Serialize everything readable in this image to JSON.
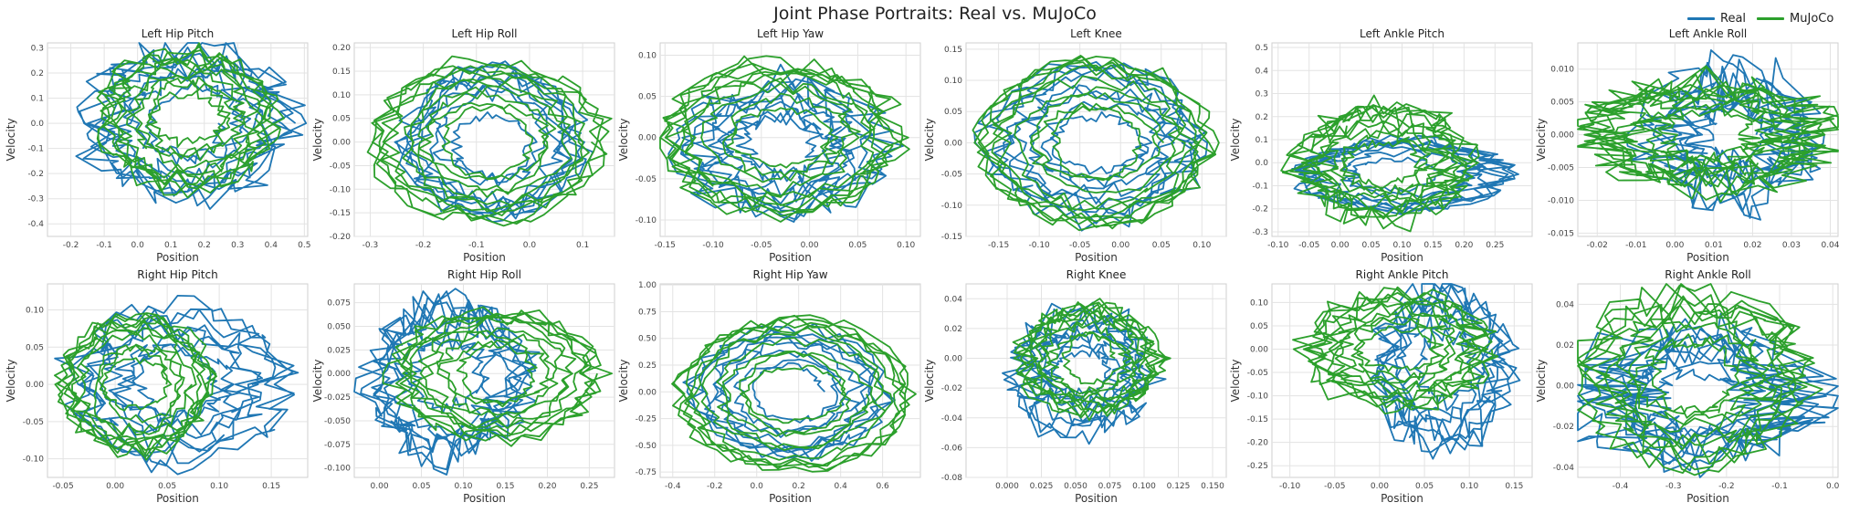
{
  "figure": {
    "title": "Joint Phase Portraits: Real vs. MuJoCo",
    "legend": [
      {
        "label": "Real",
        "color": "#1f77b4"
      },
      {
        "label": "MuJoCo",
        "color": "#2ca02c"
      }
    ]
  },
  "chart_data": [
    {
      "type": "line",
      "title": "Left Hip Pitch",
      "xlabel": "Position",
      "ylabel": "Velocity",
      "xticks": [
        "-0.2",
        "-0.1",
        "0.0",
        "0.1",
        "0.2",
        "0.3",
        "0.4",
        "0.5"
      ],
      "yticks": [
        "-0.4",
        "-0.3",
        "-0.2",
        "-0.1",
        "0.0",
        "0.1",
        "0.2",
        "0.3"
      ],
      "xlim": [
        -0.27,
        0.51
      ],
      "ylim": [
        -0.45,
        0.32
      ],
      "series": [
        {
          "name": "Real",
          "color": "#1f77b4",
          "center": [
            0.15,
            0.0
          ],
          "radius": [
            0.3,
            0.3
          ],
          "wobble": 0.25,
          "loops": 8
        },
        {
          "name": "MuJoCo",
          "color": "#2ca02c",
          "center": [
            0.15,
            0.02
          ],
          "radius": [
            0.25,
            0.27
          ],
          "wobble": 0.2,
          "loops": 10
        }
      ]
    },
    {
      "type": "line",
      "title": "Left Hip Roll",
      "xlabel": "Position",
      "ylabel": "Velocity",
      "xticks": [
        "-0.3",
        "-0.2",
        "-0.1",
        "0.0",
        "0.1"
      ],
      "yticks": [
        "-0.20",
        "-0.15",
        "-0.10",
        "-0.05",
        "0.00",
        "0.05",
        "0.10",
        "0.15",
        "0.20"
      ],
      "xlim": [
        -0.33,
        0.16
      ],
      "ylim": [
        -0.2,
        0.21
      ],
      "series": [
        {
          "name": "Real",
          "color": "#1f77b4",
          "center": [
            -0.07,
            0.0
          ],
          "radius": [
            0.16,
            0.15
          ],
          "wobble": 0.2,
          "loops": 8
        },
        {
          "name": "MuJoCo",
          "color": "#2ca02c",
          "center": [
            -0.08,
            0.0
          ],
          "radius": [
            0.22,
            0.17
          ],
          "wobble": 0.12,
          "loops": 10
        }
      ]
    },
    {
      "type": "line",
      "title": "Left Hip Yaw",
      "xlabel": "Position",
      "ylabel": "Velocity",
      "xticks": [
        "-0.15",
        "-0.10",
        "-0.05",
        "0.00",
        "0.05",
        "0.10"
      ],
      "yticks": [
        "-0.10",
        "-0.05",
        "0.00",
        "0.05",
        "0.10"
      ],
      "xlim": [
        -0.155,
        0.115
      ],
      "ylim": [
        -0.12,
        0.115
      ],
      "series": [
        {
          "name": "Real",
          "color": "#1f77b4",
          "center": [
            -0.03,
            -0.01
          ],
          "radius": [
            0.1,
            0.08
          ],
          "wobble": 0.3,
          "loops": 8
        },
        {
          "name": "MuJoCo",
          "color": "#2ca02c",
          "center": [
            -0.03,
            0.0
          ],
          "radius": [
            0.12,
            0.09
          ],
          "wobble": 0.15,
          "loops": 10
        }
      ]
    },
    {
      "type": "line",
      "title": "Left Knee",
      "xlabel": "Position",
      "ylabel": "Velocity",
      "xticks": [
        "-0.15",
        "-0.10",
        "-0.05",
        "0.00",
        "0.05",
        "0.10"
      ],
      "yticks": [
        "-0.15",
        "-0.10",
        "-0.05",
        "0.00",
        "0.05",
        "0.10",
        "0.15"
      ],
      "xlim": [
        -0.19,
        0.13
      ],
      "ylim": [
        -0.15,
        0.16
      ],
      "series": [
        {
          "name": "Real",
          "color": "#1f77b4",
          "center": [
            -0.03,
            0.0
          ],
          "radius": [
            0.13,
            0.12
          ],
          "wobble": 0.2,
          "loops": 8
        },
        {
          "name": "MuJoCo",
          "color": "#2ca02c",
          "center": [
            -0.03,
            0.0
          ],
          "radius": [
            0.14,
            0.13
          ],
          "wobble": 0.12,
          "loops": 10
        }
      ]
    },
    {
      "type": "line",
      "title": "Left Ankle Pitch",
      "xlabel": "Position",
      "ylabel": "Velocity",
      "xticks": [
        "-0.10",
        "-0.05",
        "0.00",
        "0.05",
        "0.10",
        "0.15",
        "0.20",
        "0.25"
      ],
      "yticks": [
        "-0.3",
        "-0.2",
        "-0.1",
        "0.0",
        "0.1",
        "0.2",
        "0.3",
        "0.4",
        "0.5"
      ],
      "xlim": [
        -0.11,
        0.31
      ],
      "ylim": [
        -0.32,
        0.52
      ],
      "series": [
        {
          "name": "Real",
          "color": "#1f77b4",
          "center": [
            0.1,
            -0.05
          ],
          "radius": [
            0.16,
            0.15
          ],
          "wobble": 0.2,
          "loops": 8
        },
        {
          "name": "MuJoCo",
          "color": "#2ca02c",
          "center": [
            0.07,
            0.0
          ],
          "radius": [
            0.14,
            0.25
          ],
          "wobble": 0.25,
          "loops": 10
        }
      ]
    },
    {
      "type": "line",
      "title": "Left Ankle Roll",
      "xlabel": "Position",
      "ylabel": "Velocity",
      "xticks": [
        "-0.02",
        "-0.01",
        "0.00",
        "0.01",
        "0.02",
        "0.03",
        "0.04"
      ],
      "yticks": [
        "-0.015",
        "-0.010",
        "-0.005",
        "0.000",
        "0.005",
        "0.010"
      ],
      "xlim": [
        -0.025,
        0.042
      ],
      "ylim": [
        -0.0155,
        0.014
      ],
      "series": [
        {
          "name": "Real",
          "color": "#1f77b4",
          "center": [
            0.015,
            0.0
          ],
          "radius": [
            0.02,
            0.01
          ],
          "wobble": 0.45,
          "loops": 8
        },
        {
          "name": "MuJoCo",
          "color": "#2ca02c",
          "center": [
            0.008,
            0.0
          ],
          "radius": [
            0.03,
            0.008
          ],
          "wobble": 0.35,
          "loops": 10
        }
      ]
    },
    {
      "type": "line",
      "title": "Right Hip Pitch",
      "xlabel": "Position",
      "ylabel": "Velocity",
      "xticks": [
        "-0.05",
        "0.00",
        "0.05",
        "0.10",
        "0.15"
      ],
      "yticks": [
        "-0.10",
        "-0.05",
        "0.00",
        "0.05",
        "0.10"
      ],
      "xlim": [
        -0.065,
        0.185
      ],
      "ylim": [
        -0.125,
        0.135
      ],
      "series": [
        {
          "name": "Real",
          "color": "#1f77b4",
          "center": [
            0.06,
            0.0
          ],
          "radius": [
            0.1,
            0.1
          ],
          "wobble": 0.25,
          "loops": 8
        },
        {
          "name": "MuJoCo",
          "color": "#2ca02c",
          "center": [
            0.02,
            0.0
          ],
          "radius": [
            0.07,
            0.09
          ],
          "wobble": 0.15,
          "loops": 10
        }
      ]
    },
    {
      "type": "line",
      "title": "Right Hip Roll",
      "xlabel": "Position",
      "ylabel": "Velocity",
      "xticks": [
        "0.00",
        "0.05",
        "0.10",
        "0.15",
        "0.20",
        "0.25"
      ],
      "yticks": [
        "-0.100",
        "-0.075",
        "-0.050",
        "-0.025",
        "0.000",
        "0.025",
        "0.050",
        "0.075"
      ],
      "xlim": [
        -0.03,
        0.28
      ],
      "ylim": [
        -0.11,
        0.095
      ],
      "series": [
        {
          "name": "Real",
          "color": "#1f77b4",
          "center": [
            0.08,
            -0.005
          ],
          "radius": [
            0.09,
            0.08
          ],
          "wobble": 0.3,
          "loops": 8
        },
        {
          "name": "MuJoCo",
          "color": "#2ca02c",
          "center": [
            0.14,
            0.0
          ],
          "radius": [
            0.12,
            0.07
          ],
          "wobble": 0.15,
          "loops": 10
        }
      ]
    },
    {
      "type": "line",
      "title": "Right Hip Yaw",
      "xlabel": "Position",
      "ylabel": "Velocity",
      "xticks": [
        "-0.4",
        "-0.2",
        "0.0",
        "0.2",
        "0.4",
        "0.6"
      ],
      "yticks": [
        "-0.75",
        "-0.50",
        "-0.25",
        "0.00",
        "0.25",
        "0.50",
        "0.75",
        "1.00"
      ],
      "xlim": [
        -0.46,
        0.78
      ],
      "ylim": [
        -0.8,
        1.01
      ],
      "series": [
        {
          "name": "Real",
          "color": "#1f77b4",
          "center": [
            0.15,
            0.0
          ],
          "radius": [
            0.45,
            0.6
          ],
          "wobble": 0.15,
          "loops": 8
        },
        {
          "name": "MuJoCo",
          "color": "#2ca02c",
          "center": [
            0.18,
            -0.02
          ],
          "radius": [
            0.55,
            0.7
          ],
          "wobble": 0.1,
          "loops": 10
        }
      ]
    },
    {
      "type": "line",
      "title": "Right Knee",
      "xlabel": "Position",
      "ylabel": "Velocity",
      "xticks": [
        "0.000",
        "0.025",
        "0.050",
        "0.075",
        "0.100",
        "0.125",
        "0.150"
      ],
      "yticks": [
        "-0.08",
        "-0.06",
        "-0.04",
        "-0.02",
        "0.00",
        "0.02",
        "0.04"
      ],
      "xlim": [
        -0.03,
        0.16
      ],
      "ylim": [
        -0.08,
        0.05
      ],
      "series": [
        {
          "name": "Real",
          "color": "#1f77b4",
          "center": [
            0.055,
            -0.01
          ],
          "radius": [
            0.05,
            0.04
          ],
          "wobble": 0.3,
          "loops": 8
        },
        {
          "name": "MuJoCo",
          "color": "#2ca02c",
          "center": [
            0.06,
            0.0
          ],
          "radius": [
            0.05,
            0.035
          ],
          "wobble": 0.2,
          "loops": 10
        }
      ]
    },
    {
      "type": "line",
      "title": "Right Ankle Pitch",
      "xlabel": "Position",
      "ylabel": "Velocity",
      "xticks": [
        "-0.10",
        "-0.05",
        "0.00",
        "0.05",
        "0.10",
        "0.15"
      ],
      "yticks": [
        "-0.25",
        "-0.20",
        "-0.15",
        "-0.10",
        "-0.05",
        "0.00",
        "0.05",
        "0.10"
      ],
      "xlim": [
        -0.12,
        0.17
      ],
      "ylim": [
        -0.275,
        0.14
      ],
      "series": [
        {
          "name": "Real",
          "color": "#1f77b4",
          "center": [
            0.07,
            -0.04
          ],
          "radius": [
            0.07,
            0.16
          ],
          "wobble": 0.3,
          "loops": 8
        },
        {
          "name": "MuJoCo",
          "color": "#2ca02c",
          "center": [
            0.02,
            0.0
          ],
          "radius": [
            0.1,
            0.12
          ],
          "wobble": 0.2,
          "loops": 10
        }
      ]
    },
    {
      "type": "line",
      "title": "Right Ankle Roll",
      "xlabel": "Position",
      "ylabel": "Velocity",
      "xticks": [
        "-0.4",
        "-0.3",
        "-0.2",
        "-0.1",
        "0.0"
      ],
      "yticks": [
        "-0.04",
        "-0.02",
        "0.00",
        "0.02",
        "0.04"
      ],
      "xlim": [
        -0.48,
        0.01
      ],
      "ylim": [
        -0.045,
        0.05
      ],
      "series": [
        {
          "name": "Real",
          "color": "#1f77b4",
          "center": [
            -0.25,
            -0.005
          ],
          "radius": [
            0.21,
            0.03
          ],
          "wobble": 0.45,
          "loops": 8
        },
        {
          "name": "MuJoCo",
          "color": "#2ca02c",
          "center": [
            -0.26,
            0.005
          ],
          "radius": [
            0.2,
            0.04
          ],
          "wobble": 0.25,
          "loops": 10
        }
      ]
    }
  ]
}
